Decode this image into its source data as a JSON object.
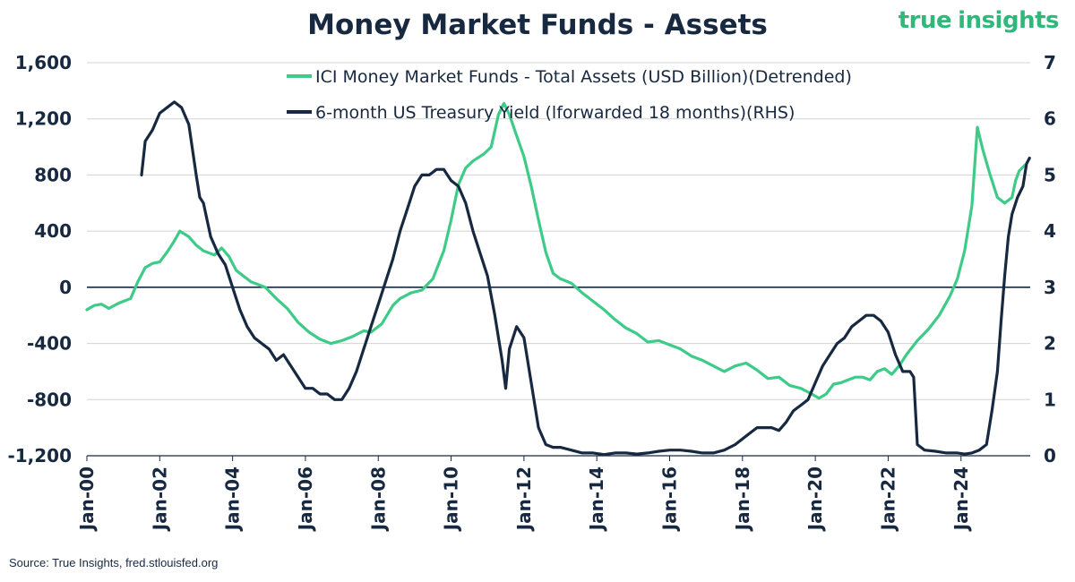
{
  "title": "Money Market Funds - Assets",
  "brand": {
    "word1": "true",
    "word2": "insights"
  },
  "source": "Source: True Insights, fred.stlouisfed.org",
  "colors": {
    "mmf": "#3ecb88",
    "yield": "#172841",
    "grid": "#d3d3d3",
    "text": "#172841",
    "brand": "#2fb87a"
  },
  "chart_data": {
    "type": "line",
    "grid": true,
    "legend_position": "top",
    "left_axis": {
      "min": -1200,
      "max": 1600,
      "ticks": [
        -1200,
        -800,
        -400,
        0,
        400,
        800,
        1200,
        1600
      ],
      "tick_labels": [
        "-1,200",
        "-800",
        "-400",
        "0",
        "400",
        "800",
        "1,200",
        "1,600"
      ]
    },
    "right_axis": {
      "min": 0,
      "max": 7,
      "ticks": [
        0,
        1,
        2,
        3,
        4,
        5,
        6,
        7
      ],
      "tick_labels": [
        "0",
        "1",
        "2",
        "3",
        "4",
        "5",
        "6",
        "7"
      ]
    },
    "x_range": [
      2000.0,
      2025.9
    ],
    "x_ticks": [
      {
        "x": 2000,
        "label": "Jan-00"
      },
      {
        "x": 2002,
        "label": "Jan-02"
      },
      {
        "x": 2004,
        "label": "Jan-04"
      },
      {
        "x": 2006,
        "label": "Jan-06"
      },
      {
        "x": 2008,
        "label": "Jan-08"
      },
      {
        "x": 2010,
        "label": "Jan-10"
      },
      {
        "x": 2012,
        "label": "Jan-12"
      },
      {
        "x": 2014,
        "label": "Jan-14"
      },
      {
        "x": 2016,
        "label": "Jan-16"
      },
      {
        "x": 2018,
        "label": "Jan-18"
      },
      {
        "x": 2020,
        "label": "Jan-20"
      },
      {
        "x": 2022,
        "label": "Jan-22"
      },
      {
        "x": 2024,
        "label": "Jan-24"
      }
    ],
    "series": [
      {
        "name": "ICI Money Market Funds - Total Assets (USD Billion)(Detrended)",
        "axis": "left",
        "color": "#3ecb88",
        "points": [
          [
            2000.0,
            -160
          ],
          [
            2000.2,
            -130
          ],
          [
            2000.4,
            -120
          ],
          [
            2000.6,
            -150
          ],
          [
            2000.9,
            -110
          ],
          [
            2001.2,
            -80
          ],
          [
            2001.4,
            40
          ],
          [
            2001.6,
            140
          ],
          [
            2001.8,
            170
          ],
          [
            2002.0,
            180
          ],
          [
            2002.2,
            250
          ],
          [
            2002.4,
            330
          ],
          [
            2002.55,
            400
          ],
          [
            2002.8,
            360
          ],
          [
            2003.0,
            300
          ],
          [
            2003.2,
            260
          ],
          [
            2003.5,
            230
          ],
          [
            2003.7,
            280
          ],
          [
            2003.9,
            220
          ],
          [
            2004.1,
            120
          ],
          [
            2004.3,
            80
          ],
          [
            2004.5,
            40
          ],
          [
            2004.7,
            20
          ],
          [
            2004.9,
            0
          ],
          [
            2005.2,
            -80
          ],
          [
            2005.5,
            -150
          ],
          [
            2005.8,
            -250
          ],
          [
            2006.1,
            -320
          ],
          [
            2006.4,
            -370
          ],
          [
            2006.7,
            -400
          ],
          [
            2007.0,
            -380
          ],
          [
            2007.3,
            -350
          ],
          [
            2007.6,
            -310
          ],
          [
            2007.8,
            -320
          ],
          [
            2008.1,
            -260
          ],
          [
            2008.4,
            -130
          ],
          [
            2008.6,
            -80
          ],
          [
            2008.9,
            -40
          ],
          [
            2009.2,
            -20
          ],
          [
            2009.5,
            60
          ],
          [
            2009.8,
            260
          ],
          [
            2010.0,
            480
          ],
          [
            2010.2,
            730
          ],
          [
            2010.4,
            850
          ],
          [
            2010.6,
            900
          ],
          [
            2010.9,
            950
          ],
          [
            2011.1,
            1000
          ],
          [
            2011.3,
            1230
          ],
          [
            2011.45,
            1310
          ],
          [
            2011.6,
            1230
          ],
          [
            2011.8,
            1080
          ],
          [
            2012.0,
            930
          ],
          [
            2012.2,
            720
          ],
          [
            2012.4,
            480
          ],
          [
            2012.6,
            250
          ],
          [
            2012.8,
            100
          ],
          [
            2013.0,
            60
          ],
          [
            2013.3,
            30
          ],
          [
            2013.6,
            -40
          ],
          [
            2013.9,
            -100
          ],
          [
            2014.2,
            -160
          ],
          [
            2014.5,
            -230
          ],
          [
            2014.8,
            -290
          ],
          [
            2015.1,
            -330
          ],
          [
            2015.4,
            -390
          ],
          [
            2015.7,
            -380
          ],
          [
            2016.0,
            -410
          ],
          [
            2016.3,
            -440
          ],
          [
            2016.6,
            -490
          ],
          [
            2016.9,
            -520
          ],
          [
            2017.2,
            -560
          ],
          [
            2017.5,
            -600
          ],
          [
            2017.8,
            -560
          ],
          [
            2018.1,
            -540
          ],
          [
            2018.4,
            -590
          ],
          [
            2018.7,
            -650
          ],
          [
            2019.0,
            -640
          ],
          [
            2019.3,
            -700
          ],
          [
            2019.6,
            -720
          ],
          [
            2019.9,
            -760
          ],
          [
            2020.1,
            -790
          ],
          [
            2020.3,
            -760
          ],
          [
            2020.5,
            -690
          ],
          [
            2020.7,
            -680
          ],
          [
            2020.9,
            -660
          ],
          [
            2021.1,
            -640
          ],
          [
            2021.3,
            -640
          ],
          [
            2021.5,
            -660
          ],
          [
            2021.7,
            -600
          ],
          [
            2021.9,
            -580
          ],
          [
            2022.1,
            -620
          ],
          [
            2022.3,
            -560
          ],
          [
            2022.5,
            -480
          ],
          [
            2022.8,
            -380
          ],
          [
            2023.1,
            -300
          ],
          [
            2023.4,
            -200
          ],
          [
            2023.7,
            -60
          ],
          [
            2023.9,
            60
          ],
          [
            2024.1,
            260
          ],
          [
            2024.3,
            580
          ],
          [
            2024.45,
            1140
          ],
          [
            2024.6,
            980
          ],
          [
            2024.8,
            800
          ],
          [
            2025.0,
            640
          ],
          [
            2025.2,
            600
          ],
          [
            2025.4,
            640
          ],
          [
            2025.5,
            760
          ],
          [
            2025.6,
            830
          ],
          [
            2025.75,
            870
          ]
        ]
      },
      {
        "name": "6-month US Treasury Yield (lforwarded 18 months)(RHS)",
        "axis": "right",
        "color": "#172841",
        "points": [
          [
            2001.5,
            5.0
          ],
          [
            2001.6,
            5.6
          ],
          [
            2001.8,
            5.8
          ],
          [
            2002.0,
            6.1
          ],
          [
            2002.2,
            6.2
          ],
          [
            2002.4,
            6.3
          ],
          [
            2002.6,
            6.2
          ],
          [
            2002.8,
            5.9
          ],
          [
            2003.0,
            5.0
          ],
          [
            2003.1,
            4.6
          ],
          [
            2003.2,
            4.5
          ],
          [
            2003.4,
            3.9
          ],
          [
            2003.6,
            3.6
          ],
          [
            2003.8,
            3.4
          ],
          [
            2004.0,
            3.0
          ],
          [
            2004.2,
            2.6
          ],
          [
            2004.4,
            2.3
          ],
          [
            2004.6,
            2.1
          ],
          [
            2004.8,
            2.0
          ],
          [
            2005.0,
            1.9
          ],
          [
            2005.2,
            1.7
          ],
          [
            2005.4,
            1.8
          ],
          [
            2005.6,
            1.6
          ],
          [
            2005.8,
            1.4
          ],
          [
            2006.0,
            1.2
          ],
          [
            2006.2,
            1.2
          ],
          [
            2006.4,
            1.1
          ],
          [
            2006.6,
            1.1
          ],
          [
            2006.8,
            1.0
          ],
          [
            2007.0,
            1.0
          ],
          [
            2007.2,
            1.2
          ],
          [
            2007.4,
            1.5
          ],
          [
            2007.6,
            1.9
          ],
          [
            2007.8,
            2.3
          ],
          [
            2008.0,
            2.7
          ],
          [
            2008.2,
            3.1
          ],
          [
            2008.4,
            3.5
          ],
          [
            2008.6,
            4.0
          ],
          [
            2008.8,
            4.4
          ],
          [
            2009.0,
            4.8
          ],
          [
            2009.2,
            5.0
          ],
          [
            2009.4,
            5.0
          ],
          [
            2009.6,
            5.1
          ],
          [
            2009.8,
            5.1
          ],
          [
            2010.0,
            4.9
          ],
          [
            2010.2,
            4.8
          ],
          [
            2010.4,
            4.5
          ],
          [
            2010.6,
            4.0
          ],
          [
            2010.8,
            3.6
          ],
          [
            2011.0,
            3.2
          ],
          [
            2011.2,
            2.5
          ],
          [
            2011.4,
            1.7
          ],
          [
            2011.5,
            1.2
          ],
          [
            2011.6,
            1.9
          ],
          [
            2011.8,
            2.3
          ],
          [
            2012.0,
            2.1
          ],
          [
            2012.2,
            1.3
          ],
          [
            2012.4,
            0.5
          ],
          [
            2012.6,
            0.2
          ],
          [
            2012.8,
            0.15
          ],
          [
            2013.0,
            0.15
          ],
          [
            2013.3,
            0.1
          ],
          [
            2013.6,
            0.05
          ],
          [
            2013.9,
            0.05
          ],
          [
            2014.2,
            0.02
          ],
          [
            2014.5,
            0.05
          ],
          [
            2014.8,
            0.05
          ],
          [
            2015.1,
            0.03
          ],
          [
            2015.4,
            0.05
          ],
          [
            2015.7,
            0.08
          ],
          [
            2016.0,
            0.1
          ],
          [
            2016.3,
            0.1
          ],
          [
            2016.6,
            0.08
          ],
          [
            2016.9,
            0.05
          ],
          [
            2017.2,
            0.05
          ],
          [
            2017.5,
            0.1
          ],
          [
            2017.8,
            0.2
          ],
          [
            2018.0,
            0.3
          ],
          [
            2018.2,
            0.4
          ],
          [
            2018.4,
            0.5
          ],
          [
            2018.6,
            0.5
          ],
          [
            2018.8,
            0.5
          ],
          [
            2019.0,
            0.45
          ],
          [
            2019.2,
            0.6
          ],
          [
            2019.4,
            0.8
          ],
          [
            2019.6,
            0.9
          ],
          [
            2019.8,
            1.0
          ],
          [
            2020.0,
            1.3
          ],
          [
            2020.2,
            1.6
          ],
          [
            2020.4,
            1.8
          ],
          [
            2020.6,
            2.0
          ],
          [
            2020.8,
            2.1
          ],
          [
            2021.0,
            2.3
          ],
          [
            2021.2,
            2.4
          ],
          [
            2021.4,
            2.5
          ],
          [
            2021.6,
            2.5
          ],
          [
            2021.8,
            2.4
          ],
          [
            2022.0,
            2.2
          ],
          [
            2022.2,
            1.8
          ],
          [
            2022.4,
            1.5
          ],
          [
            2022.6,
            1.5
          ],
          [
            2022.7,
            1.4
          ],
          [
            2022.8,
            0.2
          ],
          [
            2023.0,
            0.1
          ],
          [
            2023.3,
            0.08
          ],
          [
            2023.6,
            0.05
          ],
          [
            2023.9,
            0.05
          ],
          [
            2024.1,
            0.03
          ],
          [
            2024.3,
            0.05
          ],
          [
            2024.5,
            0.1
          ],
          [
            2024.7,
            0.2
          ],
          [
            2024.85,
            0.8
          ],
          [
            2025.0,
            1.5
          ],
          [
            2025.1,
            2.4
          ],
          [
            2025.2,
            3.2
          ],
          [
            2025.3,
            3.9
          ],
          [
            2025.4,
            4.3
          ],
          [
            2025.55,
            4.6
          ],
          [
            2025.7,
            4.8
          ],
          [
            2025.8,
            5.2
          ],
          [
            2025.88,
            5.3
          ]
        ]
      }
    ]
  }
}
